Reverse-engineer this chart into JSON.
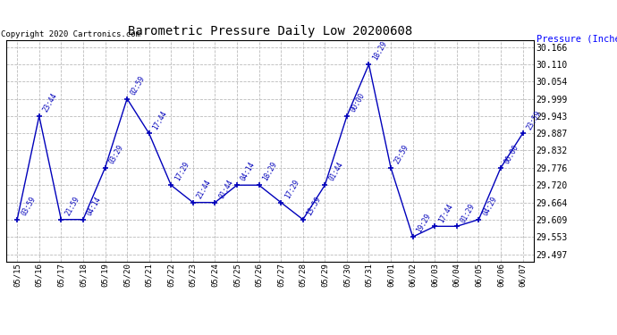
{
  "title": "Barometric Pressure Daily Low 20200608",
  "copyright": "Copyright 2020 Cartronics.com",
  "ylabel": "Pressure (Inches/Hg)",
  "dates": [
    "05/15",
    "05/16",
    "05/17",
    "05/18",
    "05/19",
    "05/20",
    "05/21",
    "05/22",
    "05/23",
    "05/24",
    "05/25",
    "05/26",
    "05/27",
    "05/28",
    "05/29",
    "05/30",
    "05/31",
    "06/01",
    "06/02",
    "06/03",
    "06/04",
    "06/05",
    "06/06",
    "06/07"
  ],
  "values": [
    29.609,
    29.943,
    29.609,
    29.609,
    29.776,
    29.999,
    29.887,
    29.72,
    29.664,
    29.664,
    29.72,
    29.72,
    29.664,
    29.609,
    29.72,
    29.943,
    30.11,
    29.776,
    29.553,
    29.587,
    29.587,
    29.609,
    29.776,
    29.887
  ],
  "time_labels": [
    "03:59",
    "23:44",
    "21:59",
    "04:14",
    "03:29",
    "02:59",
    "17:44",
    "17:29",
    "21:44",
    "01:44",
    "04:14",
    "18:29",
    "17:29",
    "13:59",
    "01:44",
    "00:00",
    "18:29",
    "23:59",
    "19:29",
    "17:44",
    "01:29",
    "04:29",
    "00:00",
    "23:59"
  ],
  "line_color": "#0000BB",
  "title_color": "#000000",
  "ylabel_color": "#0000FF",
  "copyright_color": "#000000",
  "background_color": "#FFFFFF",
  "yticks": [
    29.497,
    29.553,
    29.609,
    29.664,
    29.72,
    29.776,
    29.832,
    29.887,
    29.943,
    29.999,
    30.054,
    30.11,
    30.166
  ],
  "ylim_min": 29.474,
  "ylim_max": 30.188,
  "grid_color": "#BBBBBB"
}
